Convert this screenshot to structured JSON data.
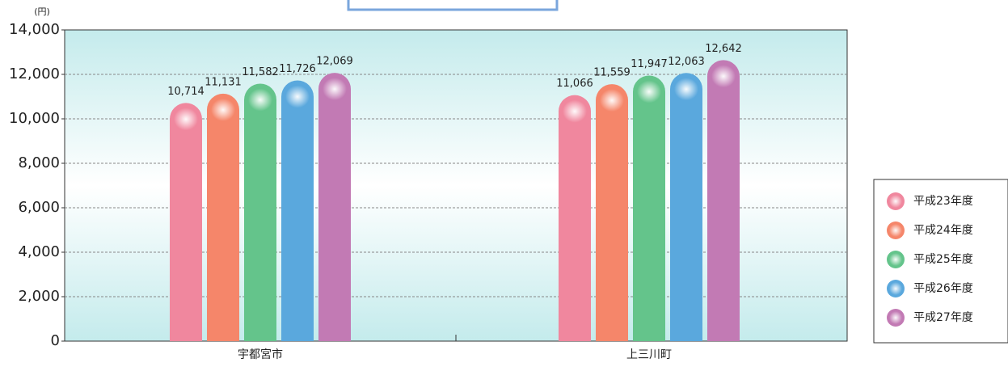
{
  "chart_data": {
    "type": "bar",
    "y_label": "(円)",
    "categories": [
      "宇都宮市",
      "上三川町"
    ],
    "series": [
      {
        "name": "平成23年度",
        "color": "#f0879e",
        "values": [
          10714,
          11066
        ],
        "value_labels": [
          "10,714",
          "11,066"
        ]
      },
      {
        "name": "平成24年度",
        "color": "#f5866a",
        "values": [
          11131,
          11559
        ],
        "value_labels": [
          "11,131",
          "11,559"
        ]
      },
      {
        "name": "平成25年度",
        "color": "#64c48b",
        "values": [
          11582,
          11947
        ],
        "value_labels": [
          "11,582",
          "11,947"
        ]
      },
      {
        "name": "平成26年度",
        "color": "#5aa8dd",
        "values": [
          11726,
          12063
        ],
        "value_labels": [
          "11,726",
          "12,063"
        ]
      },
      {
        "name": "平成27年度",
        "color": "#c27ab4",
        "values": [
          12069,
          12642
        ],
        "value_labels": [
          "12,069",
          "12,642"
        ]
      }
    ],
    "ylim": [
      0,
      14000
    ],
    "yticks": [
      0,
      {
        "value": 2000,
        "label": "2,000"
      },
      {
        "value": 4000,
        "label": "4,000"
      },
      {
        "value": 6000,
        "label": "6,000"
      },
      {
        "value": 8000,
        "label": "8,000"
      },
      {
        "value": 10000,
        "label": "10,000"
      },
      {
        "value": 12000,
        "label": "12,000"
      },
      {
        "value": 14000,
        "label": "14,000"
      }
    ],
    "grid": true,
    "legend": "right"
  }
}
